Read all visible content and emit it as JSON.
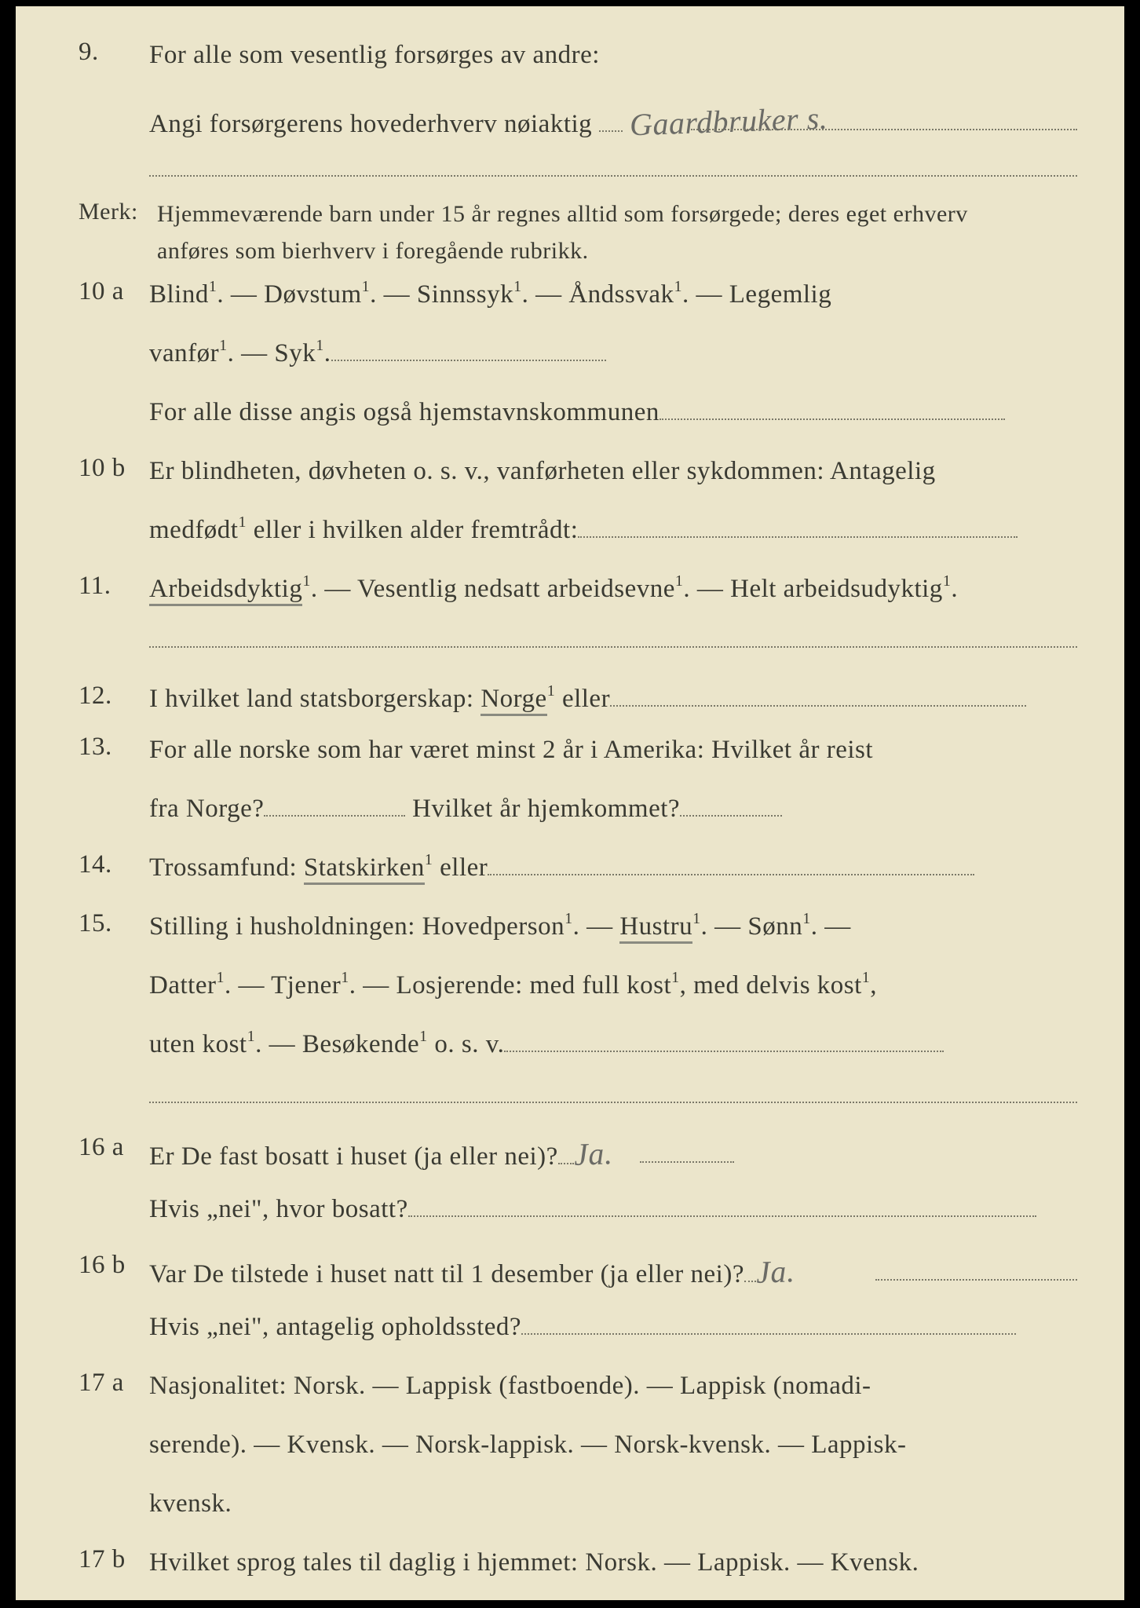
{
  "background_color": "#ebe5cb",
  "text_color": "#3a3a32",
  "dotted_color": "#7a7868",
  "handwriting_color": "#6b6b66",
  "font_family": "Georgia, Times New Roman, serif",
  "hand_font_family": "Brush Script MT, cursive",
  "body_fontsize": 33,
  "merk_fontsize": 30,
  "sup_fontsize": 20,
  "hand_fontsize": 40,
  "q9": {
    "num": "9.",
    "line1": "For alle som vesentlig forsørges av andre:",
    "line2_pre": "Angi forsørgerens hovederhverv nøiaktig",
    "handwritten": "Gaardbruker s."
  },
  "merk": {
    "label": "Merk:",
    "text1": "Hjemmeværende barn under 15 år regnes alltid som forsørgede; deres eget erhverv",
    "text2": "anføres som bierhverv i foregående rubrikk."
  },
  "q10a": {
    "num": "10 a",
    "line1_parts": [
      "Blind",
      ".   —   Døvstum",
      ".   —   Sinnssyk",
      ".   —   Åndssvak",
      ".   —   Legemlig"
    ],
    "line2_parts": [
      "vanfør",
      ".  —  Syk",
      "."
    ],
    "line3_pre": "For alle disse angis også hjemstavnskommunen"
  },
  "q10b": {
    "num": "10 b",
    "line1": "Er blindheten, døvheten o. s. v., vanførheten eller sykdommen: Antagelig",
    "line2_pre": "medfødt",
    "line2_mid": " eller i hvilken alder fremtrådt:"
  },
  "q11": {
    "num": "11.",
    "part1": "Arbeidsdyktig",
    "part2": ". — Vesentlig nedsatt arbeidsevne",
    "part3": ". — Helt arbeidsudyktig",
    "part4": "."
  },
  "q12": {
    "num": "12.",
    "pre": "I hvilket land statsborgerskap:  ",
    "norge": "Norge",
    "post": " eller"
  },
  "q13": {
    "num": "13.",
    "line1": "For alle norske som har været minst 2 år i Amerika: Hvilket år reist",
    "line2a": "fra Norge?",
    "line2b": "Hvilket år hjemkommet?"
  },
  "q14": {
    "num": "14.",
    "pre": "Trossamfund:  ",
    "statskirken": "Statskirken",
    "post": " eller"
  },
  "q15": {
    "num": "15.",
    "line1a": "Stilling i husholdningen:  Hovedperson",
    "line1b": ".  —  ",
    "hustru": "Hustru",
    "line1c": ".  —  Sønn",
    "line1d": ".  —",
    "line2a": "Datter",
    "line2b": ".  —  Tjener",
    "line2c": ".  —  Losjerende:  med full kost",
    "line2d": ", med delvis kost",
    "line2e": ",",
    "line3a": "uten kost",
    "line3b": ".  —  Besøkende",
    "line3c": "  o. s. v."
  },
  "q16a": {
    "num": "16 a",
    "line1_pre": "Er De fast bosatt i huset (ja eller nei)?",
    "hand": "Ja.",
    "line2_pre": "Hvis „nei\", hvor bosatt?"
  },
  "q16b": {
    "num": "16 b",
    "line1_pre": "Var De tilstede i huset natt til 1 desember (ja eller nei)?",
    "hand": "Ja.",
    "line2_pre": "Hvis „nei\", antagelig opholdssted?"
  },
  "q17a": {
    "num": "17 a",
    "line1": "Nasjonalitet:   Norsk.   —   Lappisk  (fastboende).   —   Lappisk  (nomadi-",
    "line2": "serende).  —  Kvensk.  —  Norsk-lappisk.  —  Norsk-kvensk.  —  Lappisk-",
    "line3": "kvensk."
  },
  "q17b": {
    "num": "17 b",
    "text": "Hvilket sprog tales til daglig i hjemmet: Norsk. — Lappisk. — Kvensk."
  }
}
